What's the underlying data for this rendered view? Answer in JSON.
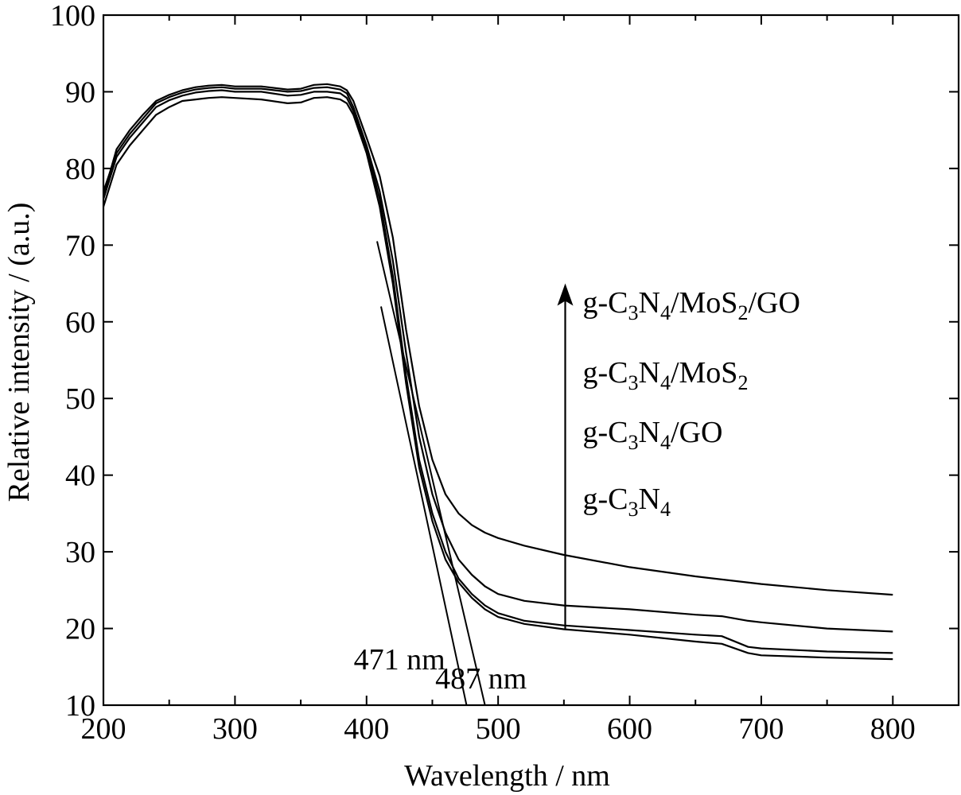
{
  "chart_data": {
    "type": "line",
    "title": "",
    "xlabel": "Wavelength / nm",
    "ylabel": "Relative intensity / (a.u.)",
    "xlim": [
      200,
      850
    ],
    "ylim": [
      10,
      100
    ],
    "xticks": [
      200,
      300,
      400,
      500,
      600,
      700,
      800
    ],
    "yticks": [
      10,
      20,
      30,
      40,
      50,
      60,
      70,
      80,
      90,
      100
    ],
    "grid": false,
    "legend_position": "right",
    "legend_order_note": "",
    "series": [
      {
        "name": "g-C3N4",
        "x": [
          200,
          210,
          220,
          230,
          240,
          250,
          260,
          270,
          280,
          290,
          300,
          320,
          340,
          350,
          360,
          370,
          380,
          385,
          390,
          400,
          410,
          420,
          430,
          440,
          450,
          460,
          470,
          480,
          490,
          500,
          520,
          550,
          600,
          650,
          670,
          690,
          700,
          750,
          800
        ],
        "y": [
          75,
          80.5,
          83,
          85,
          87,
          88,
          88.8,
          89,
          89.2,
          89.3,
          89.2,
          89,
          88.5,
          88.6,
          89.2,
          89.3,
          89,
          88.5,
          87,
          82,
          75,
          65,
          52,
          41,
          34,
          29,
          26,
          24,
          22.5,
          21.5,
          20.6,
          19.9,
          19.2,
          18.3,
          18,
          16.8,
          16.5,
          16.2,
          16
        ]
      },
      {
        "name": "g-C3N4/GO",
        "x": [
          200,
          210,
          220,
          230,
          240,
          250,
          260,
          270,
          280,
          290,
          300,
          320,
          340,
          350,
          360,
          370,
          380,
          385,
          390,
          400,
          410,
          420,
          430,
          440,
          450,
          460,
          470,
          480,
          490,
          500,
          520,
          550,
          600,
          650,
          670,
          690,
          700,
          750,
          800
        ],
        "y": [
          76,
          81.5,
          84,
          86,
          88,
          88.9,
          89.5,
          89.9,
          90.1,
          90.2,
          90,
          90,
          89.5,
          89.6,
          90,
          90,
          89.8,
          89.2,
          87.5,
          82.5,
          76,
          66,
          53,
          42,
          35,
          30,
          26.5,
          24.5,
          23,
          22,
          21,
          20.4,
          19.8,
          19.2,
          19,
          17.6,
          17.4,
          17,
          16.8
        ]
      },
      {
        "name": "g-C3N4/MoS2",
        "x": [
          200,
          210,
          220,
          230,
          240,
          250,
          260,
          270,
          280,
          290,
          300,
          320,
          340,
          350,
          360,
          370,
          380,
          385,
          390,
          400,
          410,
          420,
          430,
          440,
          450,
          460,
          470,
          480,
          490,
          500,
          520,
          550,
          600,
          650,
          670,
          690,
          700,
          750,
          800
        ],
        "y": [
          77,
          82,
          84.5,
          86.5,
          88.5,
          89.3,
          89.9,
          90.3,
          90.5,
          90.6,
          90.4,
          90.4,
          90,
          90.1,
          90.5,
          90.6,
          90.3,
          89.8,
          88,
          83,
          77,
          68,
          56,
          45,
          37.5,
          32.5,
          29,
          27,
          25.5,
          24.5,
          23.6,
          23,
          22.5,
          21.8,
          21.6,
          21,
          20.8,
          20,
          19.6
        ]
      },
      {
        "name": "g-C3N4/MoS2/GO",
        "x": [
          200,
          210,
          220,
          230,
          240,
          250,
          260,
          270,
          280,
          290,
          300,
          320,
          340,
          350,
          360,
          370,
          380,
          385,
          390,
          400,
          410,
          420,
          430,
          440,
          450,
          460,
          470,
          480,
          490,
          500,
          520,
          550,
          600,
          650,
          700,
          750,
          800
        ],
        "y": [
          76.5,
          82.5,
          85,
          87,
          88.8,
          89.6,
          90.2,
          90.6,
          90.8,
          90.9,
          90.7,
          90.7,
          90.3,
          90.4,
          90.9,
          91,
          90.7,
          90.2,
          88.8,
          84,
          79,
          71,
          59,
          49,
          42,
          37.5,
          35,
          33.5,
          32.5,
          31.8,
          30.8,
          29.6,
          28,
          26.8,
          25.8,
          25,
          24.4
        ]
      }
    ],
    "tangents": [
      {
        "x": [
          411,
          476
        ],
        "y": [
          62,
          10
        ]
      },
      {
        "x": [
          408,
          490
        ],
        "y": [
          70.5,
          10
        ]
      }
    ],
    "annotations": [
      {
        "text": "471 nm",
        "x": 425,
        "y": 16
      },
      {
        "text": "487 nm",
        "x": 487,
        "y": 13.5
      }
    ],
    "arrow": {
      "x": 551,
      "y_from": 20,
      "y_to": 65
    },
    "legend": [
      {
        "prefix": "g-C",
        "s1": "3",
        "mid": "N",
        "s2": "4",
        "suffix": "/MoS",
        "s3": "2",
        "tail": "/GO"
      },
      {
        "prefix": "g-C",
        "s1": "3",
        "mid": "N",
        "s2": "4",
        "suffix": "/MoS",
        "s3": "2",
        "tail": ""
      },
      {
        "prefix": "g-C",
        "s1": "3",
        "mid": "N",
        "s2": "4",
        "suffix": "/GO",
        "s3": "",
        "tail": ""
      },
      {
        "prefix": "g-C",
        "s1": "3",
        "mid": "N",
        "s2": "4",
        "suffix": "",
        "s3": "",
        "tail": ""
      }
    ]
  }
}
